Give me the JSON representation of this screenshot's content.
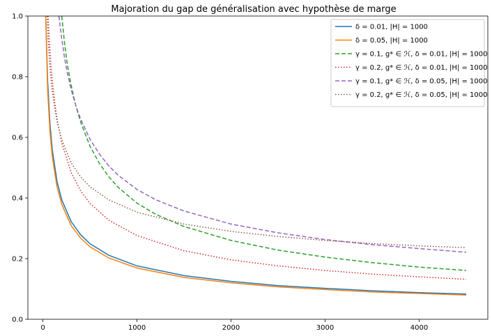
{
  "chart_data": {
    "type": "line",
    "title": "Majoration du gap de généralisation avec hypothèse de marge",
    "xlabel": "",
    "ylabel": "",
    "xlim": [
      -160,
      4730
    ],
    "ylim": [
      0,
      1
    ],
    "xticks": [
      0,
      1000,
      2000,
      3000,
      4000
    ],
    "xtick_labels": [
      "0",
      "1000",
      "2000",
      "3000",
      "4000"
    ],
    "yticks": [
      0.0,
      0.2,
      0.4,
      0.6,
      0.8,
      1.0
    ],
    "ytick_labels": [
      "0.0",
      "0.2",
      "0.4",
      "0.6",
      "0.8",
      "1.0"
    ],
    "grid": false,
    "legend_position": "top-right",
    "series": [
      {
        "name": "δ = 0.01, |H| = 1000",
        "color": "#1f77b4",
        "style": "solid",
        "x": [
          30,
          50,
          75,
          100,
          150,
          200,
          300,
          400,
          500,
          700,
          1000,
          1500,
          2000,
          2500,
          3000,
          3500,
          4000,
          4500
        ],
        "y": [
          1.0,
          0.79,
          0.644,
          0.558,
          0.455,
          0.394,
          0.322,
          0.279,
          0.249,
          0.211,
          0.176,
          0.144,
          0.125,
          0.111,
          0.102,
          0.094,
          0.088,
          0.083
        ]
      },
      {
        "name": "δ = 0.05, |H| = 1000",
        "color": "#ff7f0e",
        "style": "solid",
        "x": [
          30,
          50,
          75,
          100,
          150,
          200,
          300,
          400,
          500,
          700,
          1000,
          1500,
          2000,
          2500,
          3000,
          3500,
          4000,
          4500
        ],
        "y": [
          1.0,
          0.757,
          0.618,
          0.535,
          0.437,
          0.379,
          0.309,
          0.268,
          0.239,
          0.202,
          0.169,
          0.138,
          0.12,
          0.107,
          0.098,
          0.09,
          0.085,
          0.08
        ]
      },
      {
        "name": "γ = 0.1, g* ∈ ℋ, δ = 0.01, |H| = 1000",
        "color": "#2ca02c",
        "style": "dashed",
        "x": [
          200,
          230,
          260,
          300,
          350,
          400,
          500,
          600,
          700,
          800,
          1000,
          1200,
          1500,
          2000,
          2500,
          3000,
          3500,
          4000,
          4500
        ],
        "y": [
          1.0,
          0.911,
          0.84,
          0.771,
          0.704,
          0.651,
          0.571,
          0.514,
          0.47,
          0.435,
          0.383,
          0.346,
          0.306,
          0.26,
          0.228,
          0.205,
          0.187,
          0.172,
          0.161
        ]
      },
      {
        "name": "γ = 0.2, g* ∈ ℋ, δ = 0.01, |H| = 1000",
        "color": "#d62728",
        "style": "dotted",
        "x": [
          55,
          70,
          85,
          100,
          125,
          150,
          200,
          300,
          400,
          500,
          700,
          1000,
          1500,
          2000,
          2500,
          3000,
          3500,
          4000,
          4500
        ],
        "y": [
          1.0,
          0.909,
          0.84,
          0.787,
          0.715,
          0.661,
          0.582,
          0.484,
          0.424,
          0.382,
          0.327,
          0.276,
          0.226,
          0.196,
          0.176,
          0.161,
          0.149,
          0.14,
          0.132
        ]
      },
      {
        "name": "γ = 0.1, g* ∈ ℋ, δ = 0.05, |H| = 1000",
        "color": "#9467bd",
        "style": "dashed",
        "x": [
          170,
          200,
          230,
          260,
          300,
          350,
          400,
          500,
          600,
          700,
          800,
          1000,
          1200,
          1500,
          2000,
          2500,
          3000,
          3500,
          4000,
          4500
        ],
        "y": [
          1.0,
          0.925,
          0.862,
          0.812,
          0.758,
          0.704,
          0.661,
          0.594,
          0.545,
          0.506,
          0.475,
          0.428,
          0.394,
          0.357,
          0.314,
          0.285,
          0.263,
          0.246,
          0.233,
          0.221
        ]
      },
      {
        "name": "γ = 0.2, g* ∈ ℋ, δ = 0.05, |H| = 1000",
        "color": "#8c564b",
        "style": "dotted",
        "x": [
          45,
          55,
          70,
          85,
          100,
          125,
          150,
          200,
          300,
          400,
          500,
          700,
          1000,
          1500,
          2000,
          2500,
          3000,
          3500,
          4000,
          4500
        ],
        "y": [
          1.0,
          0.928,
          0.851,
          0.794,
          0.752,
          0.696,
          0.654,
          0.592,
          0.516,
          0.47,
          0.437,
          0.394,
          0.353,
          0.314,
          0.29,
          0.273,
          0.26,
          0.25,
          0.242,
          0.236
        ]
      }
    ]
  }
}
